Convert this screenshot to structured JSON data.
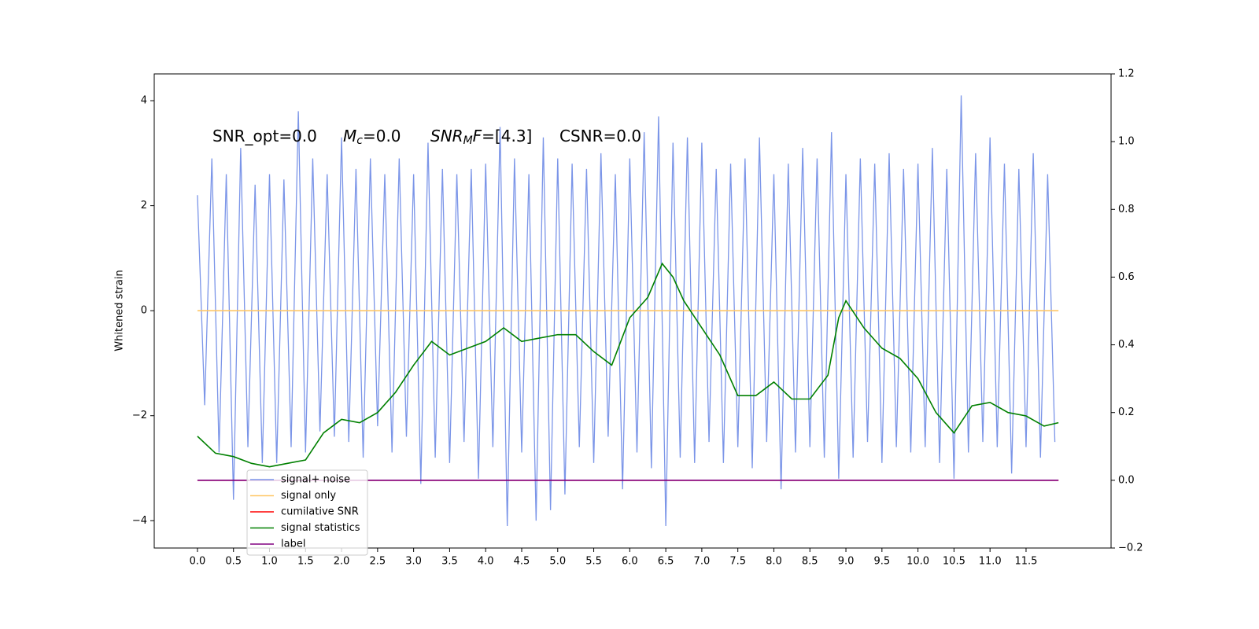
{
  "chart_data": {
    "type": "line",
    "ylabel": "Whitened strain",
    "annotations": [
      [
        {
          "text": "SNR_opt=0.0",
          "style": "normal"
        }
      ],
      [
        {
          "text": "M",
          "style": "italic"
        },
        {
          "text": "c",
          "style": "sub"
        },
        {
          "text": "=0.0",
          "style": "normal"
        }
      ],
      [
        {
          "text": "SNR",
          "style": "italic"
        },
        {
          "text": "M",
          "style": "sub"
        },
        {
          "text": "F",
          "style": "italic"
        },
        {
          "text": "=[4.3]",
          "style": "normal"
        }
      ],
      [
        {
          "text": "CSNR=0.0",
          "style": "normal"
        }
      ]
    ],
    "xlim": [
      -0.6,
      12.68
    ],
    "xticks": [
      {
        "value": 0,
        "label": "0.0"
      },
      0.5,
      {
        "value": 1,
        "label": "1.0"
      },
      1.5,
      {
        "value": 2,
        "label": "2.0"
      },
      2.5,
      {
        "value": 3,
        "label": "3.0"
      },
      3.5,
      {
        "value": 4,
        "label": "4.0"
      },
      4.5,
      {
        "value": 5,
        "label": "5.0"
      },
      5.5,
      {
        "value": 6,
        "label": "6.0"
      },
      6.5,
      {
        "value": 7,
        "label": "7.0"
      },
      7.5,
      {
        "value": 8,
        "label": "8.0"
      },
      8.5,
      {
        "value": 9,
        "label": "9.0"
      },
      9.5,
      {
        "value": 10,
        "label": "10.0"
      },
      10.5,
      {
        "value": 11,
        "label": "11.0"
      },
      11.5
    ],
    "ylim": [
      -4.52,
      4.51
    ],
    "yticks": [
      {
        "value": -4,
        "label": "−4"
      },
      {
        "value": -2,
        "label": "−2"
      },
      0,
      2,
      4
    ],
    "y2lim": [
      -0.2,
      1.2
    ],
    "y2ticks": [
      {
        "value": -0.2,
        "label": "−0.2"
      },
      {
        "value": 0,
        "label": "0.0"
      },
      0.2,
      0.4,
      0.6,
      0.8,
      {
        "value": 1,
        "label": "1.0"
      },
      1.2
    ],
    "legend": "lower left",
    "series": [
      {
        "name": "signal+ noise",
        "color": "#7b95e8",
        "x": [
          0,
          0.1,
          0.2,
          0.3,
          0.4,
          0.5,
          0.6,
          0.7,
          0.8,
          0.9,
          1,
          1.1,
          1.2,
          1.3,
          1.4,
          1.5,
          1.6,
          1.7,
          1.8,
          1.9,
          2,
          2.1,
          2.2,
          2.3,
          2.4,
          2.5,
          2.6,
          2.7,
          2.8,
          2.9,
          3,
          3.1,
          3.2,
          3.3,
          3.4,
          3.5,
          3.6,
          3.7,
          3.8,
          3.9,
          4,
          4.1,
          4.2,
          4.3,
          4.4,
          4.5,
          4.6,
          4.7,
          4.8,
          4.9,
          5,
          5.1,
          5.2,
          5.3,
          5.4,
          5.5,
          5.6,
          5.7,
          5.8,
          5.9,
          6,
          6.1,
          6.2,
          6.3,
          6.4,
          6.5,
          6.6,
          6.7,
          6.8,
          6.9,
          7,
          7.1,
          7.2,
          7.3,
          7.4,
          7.5,
          7.6,
          7.7,
          7.8,
          7.9,
          8,
          8.1,
          8.2,
          8.3,
          8.4,
          8.5,
          8.6,
          8.7,
          8.8,
          8.9,
          9,
          9.1,
          9.2,
          9.3,
          9.4,
          9.5,
          9.6,
          9.7,
          9.8,
          9.9,
          10,
          10.1,
          10.2,
          10.3,
          10.4,
          10.5,
          10.6,
          10.7,
          10.8,
          10.9,
          11,
          11.1,
          11.2,
          11.3,
          11.4,
          11.5,
          11.6,
          11.7,
          11.8,
          11.9
        ],
        "values": [
          2.2,
          -1.8,
          2.9,
          -2.7,
          2.6,
          -3.6,
          3.1,
          -2.6,
          2.4,
          -2.9,
          2.6,
          -2.9,
          2.5,
          -2.6,
          3.8,
          -2.7,
          2.9,
          -2.3,
          2.6,
          -2.4,
          3.3,
          -2.5,
          2.7,
          -2.8,
          2.9,
          -2.2,
          2.6,
          -2.7,
          2.9,
          -2.4,
          2.6,
          -3.3,
          3.2,
          -2.8,
          2.7,
          -2.9,
          2.6,
          -2.5,
          2.7,
          -3.2,
          2.8,
          -2.6,
          3.5,
          -4.1,
          2.9,
          -2.7,
          2.6,
          -4.0,
          3.3,
          -3.8,
          2.9,
          -3.5,
          2.8,
          -2.6,
          2.7,
          -2.9,
          3.0,
          -2.4,
          2.6,
          -3.4,
          2.9,
          -2.7,
          3.4,
          -3.0,
          3.7,
          -4.1,
          3.2,
          -2.8,
          3.3,
          -2.9,
          3.2,
          -2.5,
          2.7,
          -2.9,
          2.8,
          -2.6,
          2.9,
          -3.0,
          3.3,
          -2.5,
          2.6,
          -3.4,
          2.8,
          -2.7,
          3.1,
          -2.6,
          2.9,
          -2.8,
          3.4,
          -3.2,
          2.6,
          -2.8,
          2.9,
          -2.5,
          2.8,
          -2.9,
          3.0,
          -2.6,
          2.7,
          -2.7,
          2.8,
          -2.6,
          3.1,
          -2.9,
          2.7,
          -3.2,
          4.1,
          -2.7,
          3.0,
          -2.5,
          3.3,
          -2.6,
          2.8,
          -3.1,
          2.7,
          -2.6,
          3.0,
          -2.8,
          2.6,
          -2.5
        ]
      },
      {
        "name": "signal only",
        "color": "#ffc766",
        "x": [
          0,
          11.95
        ],
        "values": [
          0,
          0
        ]
      },
      {
        "name": "cumilative SNR",
        "color": "#ff0000",
        "axis": "y2",
        "x": [
          0,
          11.95
        ],
        "values": [
          0,
          0
        ]
      },
      {
        "name": "signal statistics",
        "color": "#008000",
        "axis": "y2",
        "x": [
          0,
          0.25,
          0.5,
          0.75,
          1,
          1.25,
          1.5,
          1.75,
          2,
          2.25,
          2.5,
          2.75,
          3,
          3.25,
          3.5,
          3.75,
          4,
          4.25,
          4.5,
          4.75,
          5,
          5.25,
          5.5,
          5.75,
          6,
          6.25,
          6.45,
          6.6,
          6.75,
          7,
          7.25,
          7.5,
          7.75,
          8,
          8.25,
          8.5,
          8.75,
          8.9,
          9,
          9.25,
          9.5,
          9.75,
          10,
          10.25,
          10.5,
          10.75,
          11,
          11.25,
          11.5,
          11.75,
          11.95
        ],
        "values": [
          0.13,
          0.08,
          0.07,
          0.05,
          0.04,
          0.05,
          0.06,
          0.14,
          0.18,
          0.17,
          0.2,
          0.26,
          0.34,
          0.41,
          0.37,
          0.39,
          0.41,
          0.45,
          0.41,
          0.42,
          0.43,
          0.43,
          0.38,
          0.34,
          0.48,
          0.54,
          0.64,
          0.6,
          0.53,
          0.45,
          0.37,
          0.25,
          0.25,
          0.29,
          0.24,
          0.24,
          0.31,
          0.48,
          0.53,
          0.45,
          0.39,
          0.36,
          0.3,
          0.2,
          0.14,
          0.22,
          0.23,
          0.2,
          0.19,
          0.16,
          0.17
        ]
      },
      {
        "name": "label",
        "color": "#800080",
        "axis": "y2",
        "x": [
          0,
          11.95
        ],
        "values": [
          0,
          0
        ]
      }
    ]
  }
}
